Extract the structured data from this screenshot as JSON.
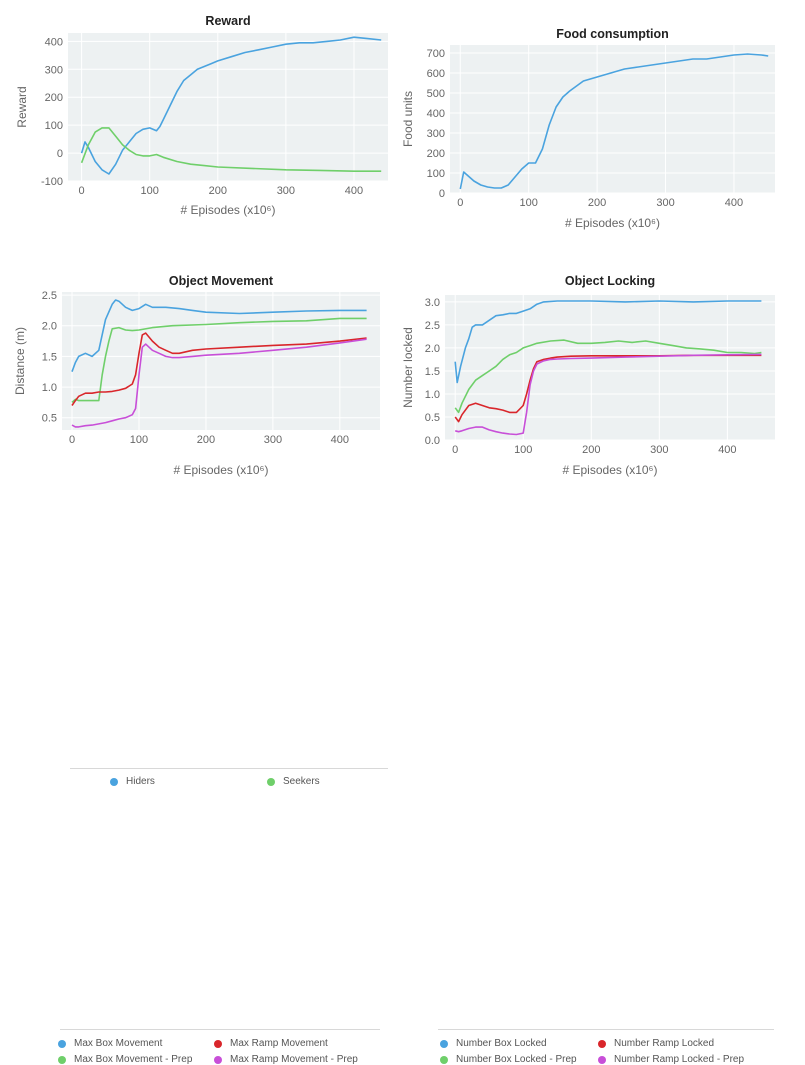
{
  "colors": {
    "blue": "#4aa3df",
    "green": "#6fcf6a",
    "red": "#d9262b",
    "magenta": "#c84fd8",
    "panel_bg": "#edf1f2",
    "grid": "#ffffff"
  },
  "chart_data": [
    {
      "type": "line",
      "title": "Reward",
      "xlabel": "# Episodes (x10⁶)",
      "ylabel": "Reward",
      "xlim": [
        -20,
        450
      ],
      "ylim": [
        -100,
        430
      ],
      "xticks": [
        0,
        100,
        200,
        300,
        400
      ],
      "yticks": [
        -100,
        0,
        100,
        200,
        300,
        400
      ],
      "grid": true,
      "legend_position": "bottom",
      "series": [
        {
          "name": "Hiders",
          "color": "#4aa3df",
          "x": [
            0,
            5,
            10,
            20,
            30,
            40,
            50,
            60,
            70,
            80,
            90,
            100,
            110,
            115,
            120,
            130,
            140,
            150,
            160,
            170,
            180,
            190,
            200,
            220,
            240,
            260,
            280,
            300,
            320,
            340,
            360,
            380,
            400,
            420,
            440
          ],
          "y": [
            0,
            40,
            20,
            -30,
            -60,
            -75,
            -40,
            10,
            40,
            70,
            85,
            90,
            80,
            95,
            120,
            170,
            220,
            260,
            280,
            300,
            310,
            320,
            330,
            345,
            360,
            370,
            380,
            390,
            395,
            395,
            400,
            405,
            415,
            410,
            405
          ]
        },
        {
          "name": "Seekers",
          "color": "#6fcf6a",
          "x": [
            0,
            10,
            20,
            30,
            40,
            50,
            60,
            70,
            80,
            90,
            100,
            110,
            120,
            140,
            160,
            180,
            200,
            250,
            300,
            350,
            400,
            440
          ],
          "y": [
            -35,
            30,
            75,
            90,
            90,
            60,
            30,
            10,
            -5,
            -10,
            -10,
            -5,
            -15,
            -30,
            -40,
            -45,
            -50,
            -55,
            -60,
            -62,
            -65,
            -65
          ]
        }
      ]
    },
    {
      "type": "line",
      "title": "Food consumption",
      "xlabel": "# Episodes (x10⁶)",
      "ylabel": "Food units",
      "xlim": [
        -15,
        460
      ],
      "ylim": [
        0,
        740
      ],
      "xticks": [
        0,
        100,
        200,
        300,
        400
      ],
      "yticks": [
        0,
        100,
        200,
        300,
        400,
        500,
        600,
        700
      ],
      "grid": true,
      "series": [
        {
          "name": "",
          "color": "#4aa3df",
          "x": [
            0,
            5,
            10,
            20,
            30,
            40,
            50,
            60,
            70,
            80,
            90,
            100,
            110,
            120,
            130,
            140,
            150,
            160,
            180,
            200,
            220,
            240,
            260,
            280,
            300,
            320,
            340,
            360,
            380,
            400,
            420,
            440,
            450
          ],
          "y": [
            20,
            105,
            90,
            60,
            40,
            30,
            25,
            25,
            40,
            80,
            120,
            150,
            150,
            220,
            340,
            430,
            480,
            510,
            560,
            580,
            600,
            620,
            630,
            640,
            650,
            660,
            670,
            670,
            680,
            690,
            695,
            690,
            685
          ]
        }
      ]
    },
    {
      "type": "line",
      "title": "Object Movement",
      "xlabel": "# Episodes (x10⁶)",
      "ylabel": "Distance (m)",
      "xlim": [
        -15,
        460
      ],
      "ylim": [
        0.3,
        2.55
      ],
      "xticks": [
        0,
        100,
        200,
        300,
        400
      ],
      "yticks": [
        0.5,
        1.0,
        1.5,
        2.0,
        2.5
      ],
      "grid": true,
      "legend_position": "bottom",
      "series": [
        {
          "name": "Max Box Movement",
          "color": "#4aa3df",
          "x": [
            0,
            5,
            10,
            20,
            30,
            40,
            50,
            60,
            65,
            70,
            80,
            90,
            100,
            110,
            120,
            140,
            160,
            180,
            200,
            250,
            300,
            350,
            400,
            440
          ],
          "y": [
            1.25,
            1.4,
            1.5,
            1.55,
            1.5,
            1.6,
            2.1,
            2.35,
            2.42,
            2.4,
            2.3,
            2.25,
            2.28,
            2.35,
            2.3,
            2.3,
            2.28,
            2.25,
            2.22,
            2.2,
            2.22,
            2.24,
            2.25,
            2.25
          ]
        },
        {
          "name": "Max Box Movement - Prep",
          "color": "#6fcf6a",
          "x": [
            0,
            5,
            10,
            20,
            30,
            40,
            45,
            50,
            55,
            60,
            70,
            80,
            90,
            100,
            120,
            150,
            200,
            250,
            300,
            350,
            400,
            440
          ],
          "y": [
            0.75,
            0.8,
            0.78,
            0.78,
            0.78,
            0.78,
            1.2,
            1.5,
            1.75,
            1.95,
            1.97,
            1.93,
            1.92,
            1.93,
            1.97,
            2.0,
            2.02,
            2.05,
            2.07,
            2.08,
            2.12,
            2.12
          ]
        },
        {
          "name": "Max Ramp Movement",
          "color": "#d9262b",
          "x": [
            0,
            5,
            10,
            20,
            30,
            40,
            50,
            60,
            70,
            80,
            90,
            95,
            100,
            105,
            110,
            120,
            130,
            140,
            150,
            160,
            180,
            200,
            250,
            300,
            350,
            400,
            440
          ],
          "y": [
            0.7,
            0.78,
            0.85,
            0.9,
            0.9,
            0.92,
            0.92,
            0.93,
            0.95,
            0.98,
            1.05,
            1.2,
            1.55,
            1.85,
            1.88,
            1.75,
            1.65,
            1.6,
            1.55,
            1.55,
            1.6,
            1.62,
            1.65,
            1.68,
            1.7,
            1.75,
            1.8
          ]
        },
        {
          "name": "Max Ramp Movement - Prep",
          "color": "#c84fd8",
          "x": [
            0,
            5,
            10,
            20,
            30,
            40,
            50,
            60,
            70,
            80,
            90,
            95,
            100,
            105,
            110,
            120,
            130,
            140,
            150,
            160,
            180,
            200,
            250,
            300,
            350,
            400,
            440
          ],
          "y": [
            0.38,
            0.35,
            0.35,
            0.37,
            0.38,
            0.4,
            0.42,
            0.45,
            0.48,
            0.5,
            0.55,
            0.65,
            1.2,
            1.65,
            1.7,
            1.6,
            1.55,
            1.5,
            1.48,
            1.48,
            1.5,
            1.52,
            1.55,
            1.6,
            1.65,
            1.72,
            1.78
          ]
        }
      ]
    },
    {
      "type": "line",
      "title": "Object Locking",
      "xlabel": "# Episodes (x10⁶)",
      "ylabel": "Number locked",
      "xlim": [
        -15,
        470
      ],
      "ylim": [
        0,
        3.15
      ],
      "xticks": [
        0,
        100,
        200,
        300,
        400
      ],
      "yticks": [
        0.0,
        0.5,
        1.0,
        1.5,
        2.0,
        2.5,
        3.0
      ],
      "grid": true,
      "legend_position": "bottom",
      "series": [
        {
          "name": "Number Box Locked",
          "color": "#4aa3df",
          "x": [
            0,
            3,
            8,
            15,
            20,
            25,
            30,
            40,
            50,
            60,
            70,
            80,
            90,
            100,
            110,
            120,
            130,
            150,
            200,
            250,
            300,
            350,
            400,
            450
          ],
          "y": [
            1.7,
            1.25,
            1.6,
            2.0,
            2.2,
            2.45,
            2.5,
            2.5,
            2.6,
            2.7,
            2.72,
            2.75,
            2.75,
            2.8,
            2.85,
            2.95,
            3.0,
            3.02,
            3.02,
            3.0,
            3.02,
            3.0,
            3.02,
            3.02
          ]
        },
        {
          "name": "Number Box Locked - Prep",
          "color": "#6fcf6a",
          "x": [
            0,
            5,
            10,
            20,
            30,
            40,
            50,
            60,
            70,
            80,
            90,
            100,
            110,
            120,
            140,
            160,
            180,
            200,
            220,
            240,
            260,
            280,
            300,
            320,
            340,
            360,
            380,
            400,
            420,
            440,
            450
          ],
          "y": [
            0.7,
            0.6,
            0.8,
            1.1,
            1.3,
            1.4,
            1.5,
            1.6,
            1.75,
            1.85,
            1.9,
            2.0,
            2.05,
            2.1,
            2.15,
            2.17,
            2.1,
            2.1,
            2.12,
            2.15,
            2.12,
            2.15,
            2.1,
            2.05,
            2.0,
            1.98,
            1.95,
            1.9,
            1.9,
            1.88,
            1.9
          ]
        },
        {
          "name": "Number Ramp Locked",
          "color": "#d9262b",
          "x": [
            0,
            5,
            10,
            20,
            30,
            40,
            50,
            60,
            70,
            80,
            90,
            100,
            105,
            110,
            115,
            120,
            130,
            140,
            150,
            170,
            200,
            250,
            300,
            350,
            400,
            450
          ],
          "y": [
            0.5,
            0.4,
            0.55,
            0.75,
            0.8,
            0.75,
            0.7,
            0.68,
            0.65,
            0.6,
            0.6,
            0.75,
            1.0,
            1.3,
            1.55,
            1.7,
            1.75,
            1.78,
            1.8,
            1.82,
            1.83,
            1.83,
            1.83,
            1.84,
            1.84,
            1.84
          ]
        },
        {
          "name": "Number Ramp Locked - Prep",
          "color": "#c84fd8",
          "x": [
            0,
            5,
            10,
            20,
            30,
            40,
            50,
            60,
            70,
            80,
            90,
            100,
            105,
            110,
            115,
            120,
            130,
            140,
            150,
            170,
            200,
            250,
            300,
            350,
            400,
            450
          ],
          "y": [
            0.2,
            0.18,
            0.2,
            0.25,
            0.28,
            0.28,
            0.22,
            0.18,
            0.15,
            0.13,
            0.12,
            0.15,
            0.6,
            1.2,
            1.5,
            1.65,
            1.72,
            1.75,
            1.76,
            1.77,
            1.78,
            1.8,
            1.82,
            1.84,
            1.85,
            1.86
          ]
        }
      ]
    }
  ]
}
